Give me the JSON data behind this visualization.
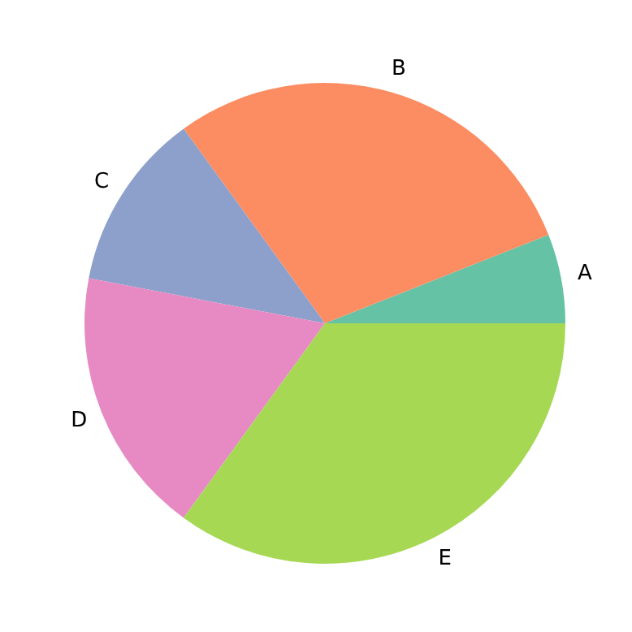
{
  "chart_data": {
    "type": "pie",
    "categories": [
      "A",
      "B",
      "C",
      "D",
      "E"
    ],
    "values": [
      6,
      29,
      12,
      18,
      35
    ],
    "colors": [
      "#66c2a5",
      "#fc8d62",
      "#8da0cb",
      "#e78ac3",
      "#a6d854"
    ]
  }
}
